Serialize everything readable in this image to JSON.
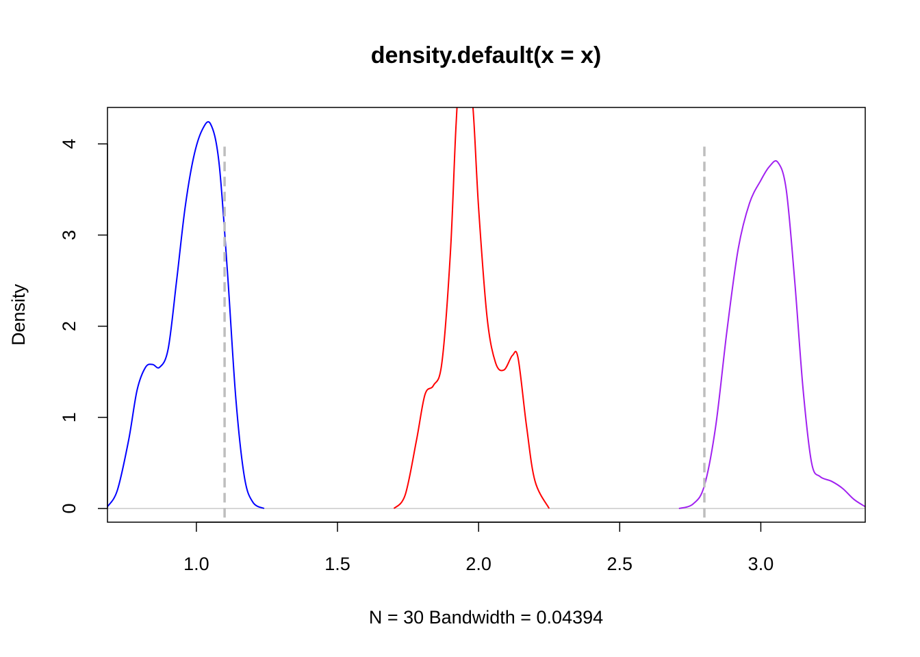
{
  "chart_data": {
    "type": "line",
    "title": "density.default(x = x)",
    "xlabel": "N = 30   Bandwidth = 0.04394",
    "ylabel": "Density",
    "xlim": [
      0.685,
      3.37
    ],
    "ylim": [
      -0.15,
      4.4
    ],
    "x_ticks": [
      1.0,
      1.5,
      2.0,
      2.5,
      3.0
    ],
    "x_tick_labels": [
      "1.0",
      "1.5",
      "2.0",
      "2.5",
      "3.0"
    ],
    "y_ticks": [
      0,
      1,
      2,
      3,
      4
    ],
    "y_tick_labels": [
      "0",
      "1",
      "2",
      "3",
      "4"
    ],
    "grid": false,
    "baseline": {
      "y": 0,
      "color": "#c8c8c8"
    },
    "series": [
      {
        "color": "#0000ff",
        "x": [
          0.685,
          0.72,
          0.76,
          0.79,
          0.82,
          0.845,
          0.87,
          0.9,
          0.93,
          0.96,
          0.99,
          1.02,
          1.05,
          1.08,
          1.11,
          1.14,
          1.17,
          1.2,
          1.24
        ],
        "y": [
          0.02,
          0.2,
          0.75,
          1.3,
          1.55,
          1.58,
          1.55,
          1.75,
          2.5,
          3.3,
          3.85,
          4.15,
          4.22,
          3.8,
          2.6,
          1.2,
          0.35,
          0.07,
          0.0
        ]
      },
      {
        "color": "#ff0000",
        "x": [
          1.7,
          1.74,
          1.78,
          1.81,
          1.84,
          1.87,
          1.9,
          1.92,
          1.94,
          1.96,
          1.98,
          2.0,
          2.03,
          2.06,
          2.09,
          2.12,
          2.14,
          2.17,
          2.2,
          2.25
        ],
        "y": [
          0.0,
          0.15,
          0.75,
          1.25,
          1.35,
          1.6,
          2.8,
          4.2,
          5.1,
          4.8,
          4.4,
          3.3,
          2.1,
          1.6,
          1.52,
          1.68,
          1.65,
          0.9,
          0.3,
          0.0
        ]
      },
      {
        "color": "#a020f0",
        "x": [
          2.71,
          2.76,
          2.8,
          2.84,
          2.88,
          2.92,
          2.96,
          3.0,
          3.03,
          3.06,
          3.09,
          3.12,
          3.15,
          3.18,
          3.21,
          3.25,
          3.29,
          3.33,
          3.37
        ],
        "y": [
          0.0,
          0.05,
          0.25,
          0.9,
          1.95,
          2.85,
          3.35,
          3.6,
          3.75,
          3.8,
          3.5,
          2.5,
          1.3,
          0.5,
          0.35,
          0.3,
          0.22,
          0.1,
          0.02
        ]
      }
    ],
    "reference_lines": [
      {
        "x": 1.1,
        "y_top": 3.97,
        "color": "#bebebe",
        "style": "dashed"
      },
      {
        "x": 2.8,
        "y_top": 3.97,
        "color": "#bebebe",
        "style": "dashed"
      }
    ]
  }
}
